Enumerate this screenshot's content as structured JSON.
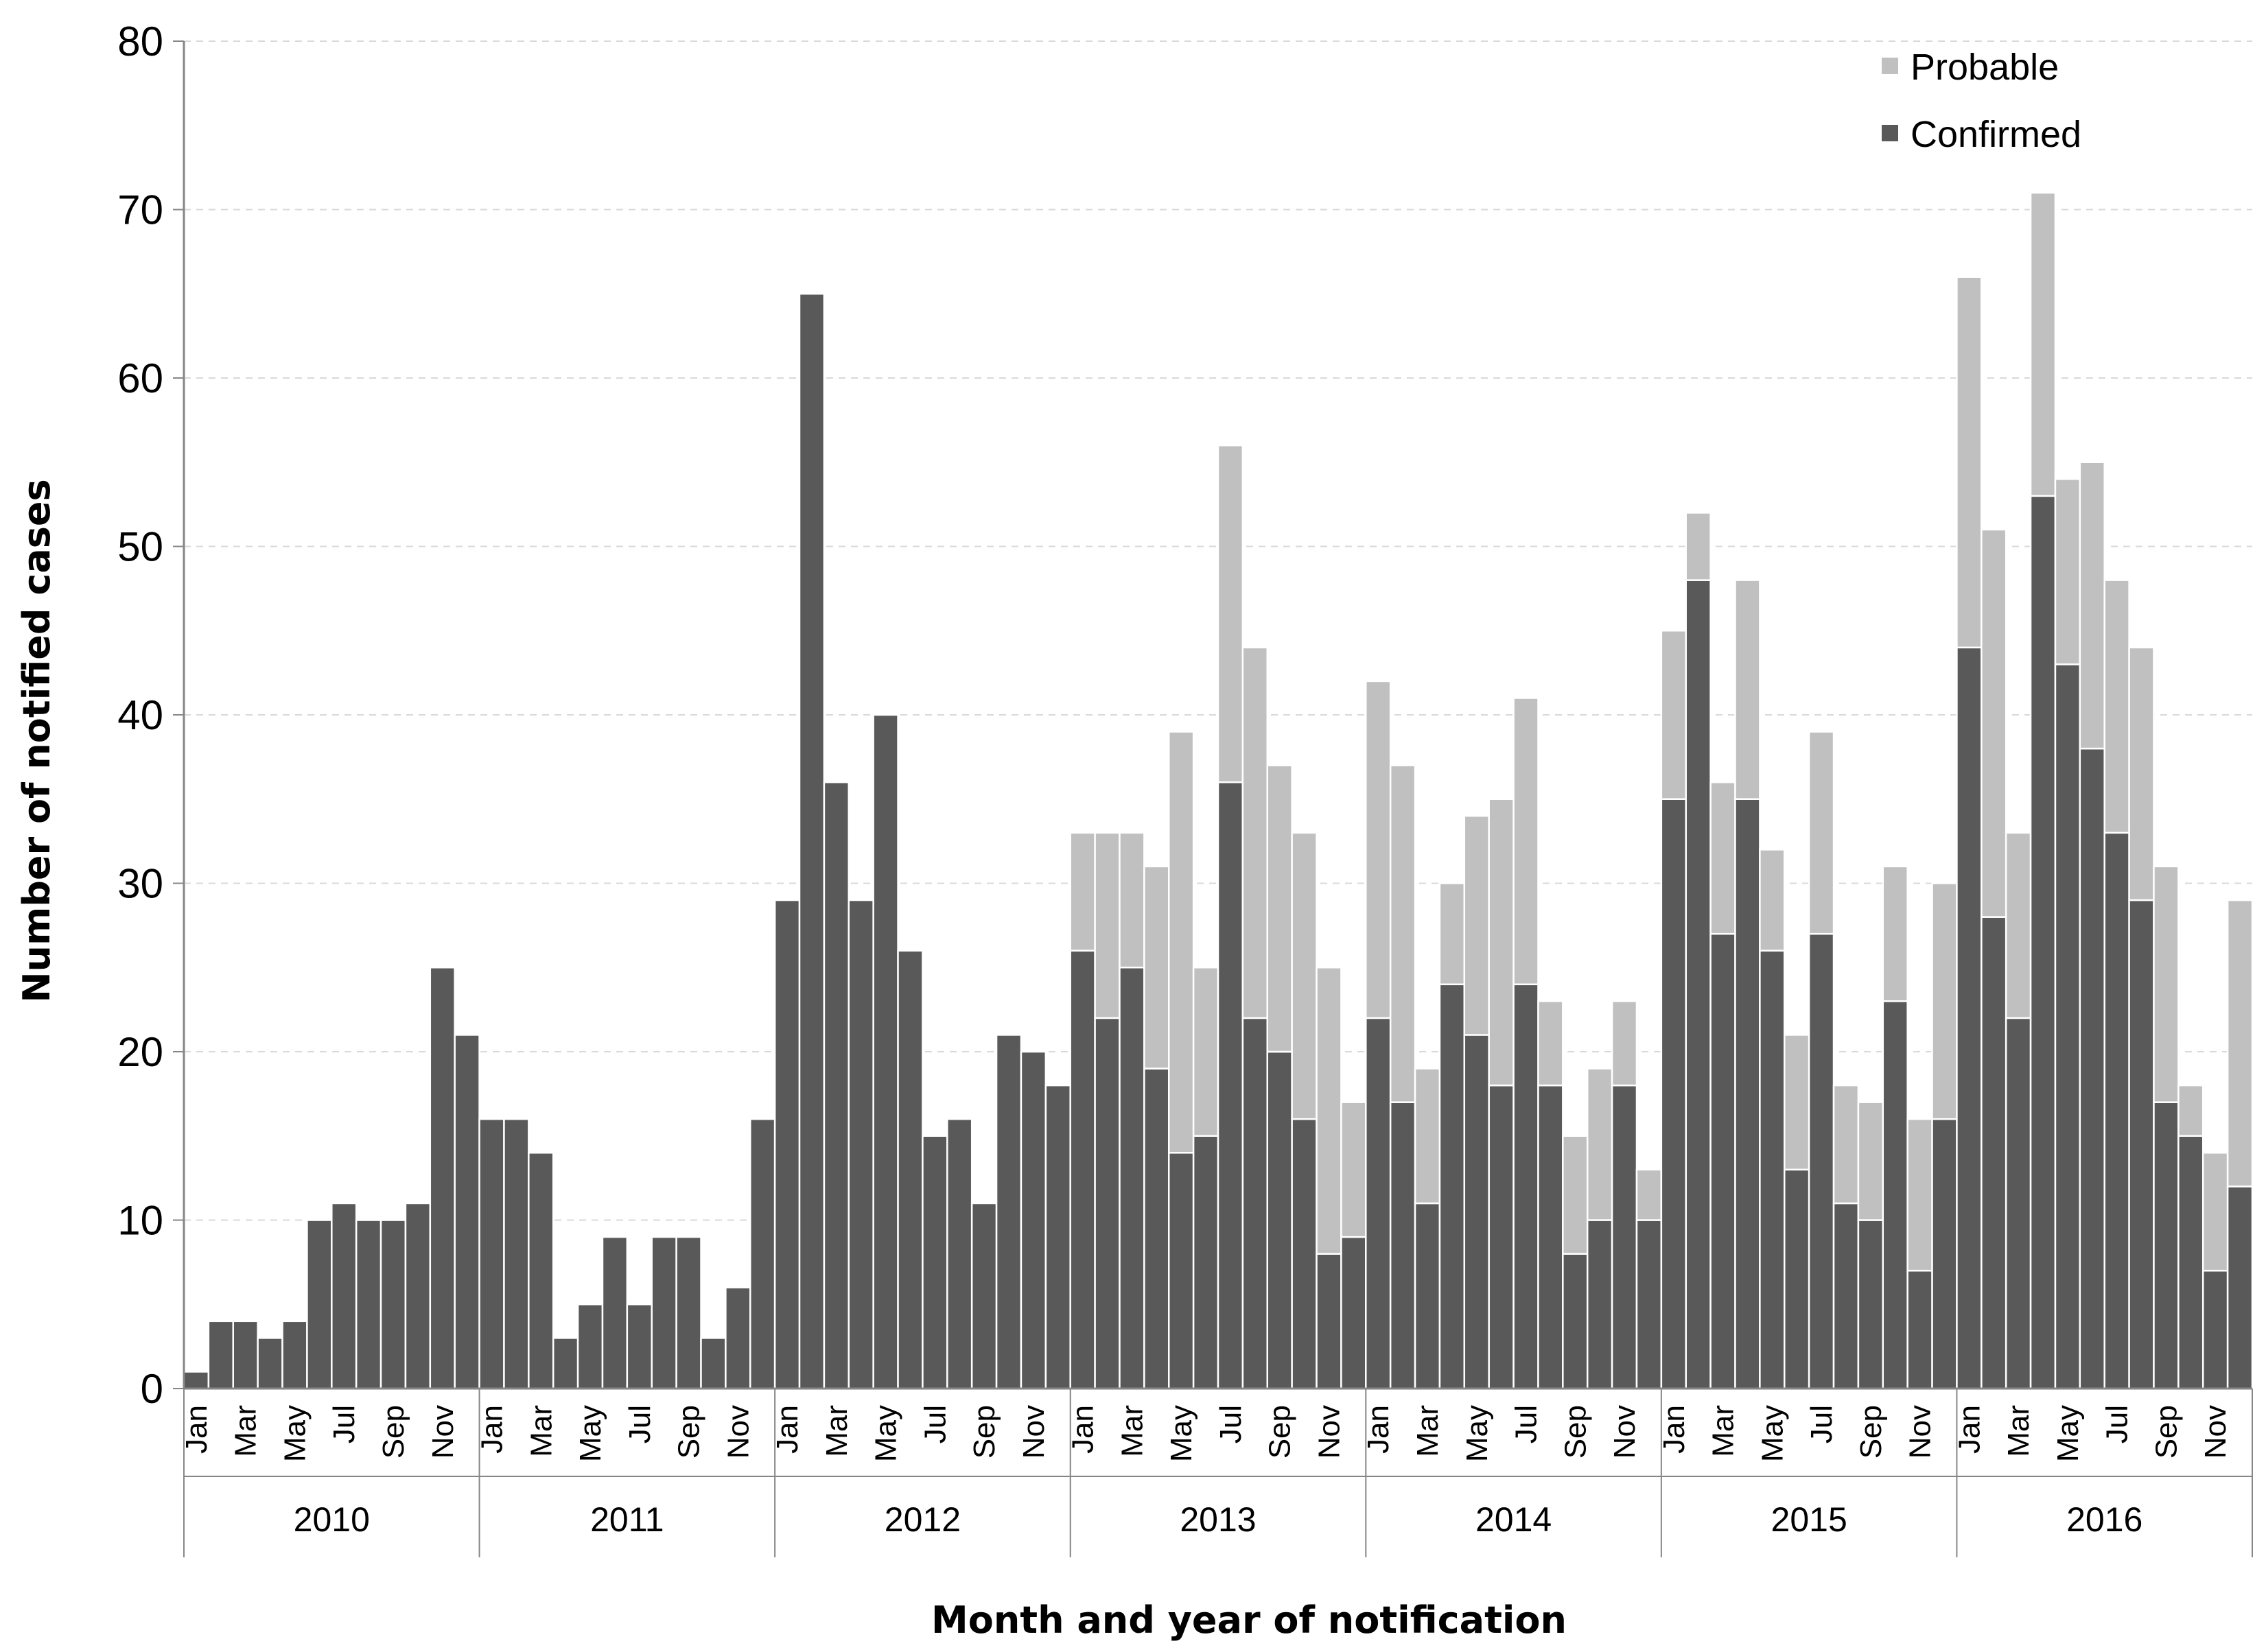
{
  "chart_data": {
    "type": "bar",
    "stacked": true,
    "ylabel": "Number of notified cases",
    "xlabel": "Month and year of notification",
    "ylim": [
      0,
      80
    ],
    "yticks": [
      "0",
      "10",
      "20",
      "30",
      "40",
      "50",
      "60",
      "70",
      "80"
    ],
    "grid": "horizontal dashed",
    "legend_position": "top-right",
    "years": [
      "2010",
      "2011",
      "2012",
      "2013",
      "2014",
      "2015",
      "2016"
    ],
    "month_labels": [
      "Jan",
      "Mar",
      "May",
      "Jul",
      "Sep",
      "Nov"
    ],
    "series": [
      {
        "name": "Confirmed",
        "color": "#595959",
        "values": [
          1,
          4,
          4,
          3,
          4,
          10,
          11,
          10,
          10,
          11,
          25,
          21,
          16,
          16,
          14,
          3,
          5,
          9,
          5,
          9,
          9,
          3,
          6,
          16,
          29,
          65,
          36,
          29,
          40,
          26,
          15,
          16,
          11,
          21,
          20,
          18,
          26,
          22,
          25,
          19,
          14,
          15,
          36,
          22,
          20,
          16,
          8,
          9,
          22,
          17,
          11,
          24,
          21,
          18,
          24,
          18,
          8,
          10,
          18,
          10,
          35,
          48,
          27,
          35,
          26,
          13,
          27,
          11,
          10,
          23,
          7,
          16,
          44,
          28,
          22,
          53,
          43,
          38,
          33,
          29,
          17,
          15,
          7,
          12
        ]
      },
      {
        "name": "Probable",
        "color": "#c0c0c0",
        "values": [
          0,
          0,
          0,
          0,
          0,
          0,
          0,
          0,
          0,
          0,
          0,
          0,
          0,
          0,
          0,
          0,
          0,
          0,
          0,
          0,
          0,
          0,
          0,
          0,
          0,
          0,
          0,
          0,
          0,
          0,
          0,
          0,
          0,
          0,
          0,
          0,
          7,
          11,
          8,
          12,
          25,
          10,
          20,
          22,
          17,
          17,
          17,
          8,
          20,
          20,
          8,
          6,
          13,
          17,
          17,
          5,
          7,
          9,
          5,
          3,
          10,
          4,
          9,
          13,
          6,
          8,
          12,
          7,
          7,
          8,
          9,
          14,
          22,
          23,
          11,
          18,
          11,
          17,
          15,
          15,
          14,
          3,
          7,
          17
        ]
      }
    ]
  }
}
